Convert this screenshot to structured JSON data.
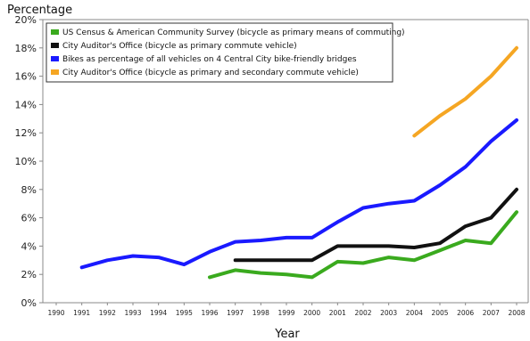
{
  "chart_data": {
    "type": "line",
    "title": "",
    "ylabel": "Percentage",
    "xlabel": "Year",
    "ylim": [
      0,
      20
    ],
    "ytick_labels": [
      "0%",
      "2%",
      "4%",
      "6%",
      "8%",
      "10%",
      "12%",
      "14%",
      "16%",
      "18%",
      "20%"
    ],
    "ytick_values": [
      0,
      2,
      4,
      6,
      8,
      10,
      12,
      14,
      16,
      18,
      20
    ],
    "categories": [
      "1990",
      "1991",
      "1992",
      "1993",
      "1994",
      "1995",
      "1996",
      "1997",
      "1998",
      "1999",
      "2000",
      "2001",
      "2002",
      "2003",
      "2004",
      "2005",
      "2006",
      "2007",
      "2008"
    ],
    "grid": false,
    "legend_position": "top-left",
    "series": [
      {
        "name": "US Census & American Community Survey (bicycle as primary means of commuting)",
        "color": "#3aaa1e",
        "values": [
          null,
          null,
          null,
          null,
          null,
          null,
          1.8,
          2.3,
          2.1,
          2.0,
          1.8,
          2.9,
          2.8,
          3.2,
          3.0,
          3.7,
          4.4,
          4.2,
          6.4
        ]
      },
      {
        "name": "City Auditor's Office (bicycle as primary commute vehicle)",
        "color": "#111111",
        "values": [
          null,
          null,
          null,
          null,
          null,
          null,
          null,
          3.0,
          3.0,
          3.0,
          3.0,
          4.0,
          4.0,
          4.0,
          3.9,
          4.2,
          5.4,
          6.0,
          8.0
        ]
      },
      {
        "name": "Bikes as percentage of all vehicles on 4 Central City bike-friendly bridges",
        "color": "#1a1aff",
        "values": [
          null,
          2.5,
          3.0,
          3.3,
          3.2,
          2.7,
          3.6,
          4.3,
          4.4,
          4.6,
          4.6,
          5.7,
          6.7,
          7.0,
          7.2,
          8.3,
          9.6,
          11.4,
          12.9
        ]
      },
      {
        "name": "City Auditor's Office (bicycle as primary and secondary commute vehicle)",
        "color": "#f5a623",
        "values": [
          null,
          null,
          null,
          null,
          null,
          null,
          null,
          null,
          null,
          null,
          null,
          null,
          null,
          null,
          11.8,
          13.2,
          14.4,
          16.0,
          18.0
        ]
      }
    ]
  }
}
